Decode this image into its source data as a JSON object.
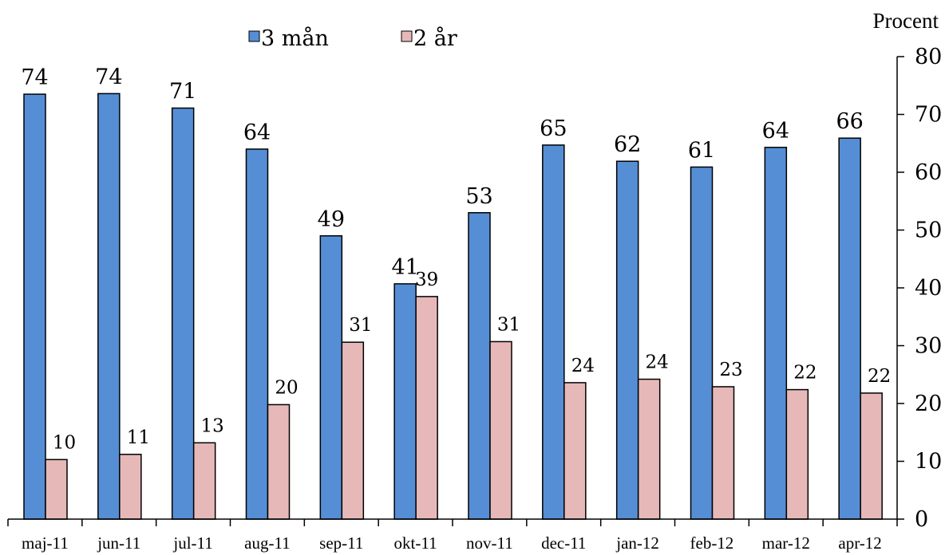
{
  "chart_data": {
    "type": "bar",
    "title": "",
    "unit_label": "Procent",
    "xlabel": "",
    "ylabel": "",
    "ylim": [
      0,
      80
    ],
    "yticks": [
      0,
      10,
      20,
      30,
      40,
      50,
      60,
      70,
      80
    ],
    "y_axis_side": "right",
    "grid": false,
    "legend_position": "top-left",
    "categories": [
      "maj-11",
      "jun-11",
      "jul-11",
      "aug-11",
      "sep-11",
      "okt-11",
      "nov-11",
      "dec-11",
      "jan-12",
      "feb-12",
      "mar-12",
      "apr-12"
    ],
    "series": [
      {
        "name": "3 mån",
        "color": "#558ed5",
        "values": [
          73.5,
          73.6,
          71.1,
          64.0,
          49.0,
          40.7,
          53.0,
          64.7,
          61.9,
          60.9,
          64.3,
          65.9
        ],
        "labels": [
          "74",
          "74",
          "71",
          "64",
          "49",
          "41",
          "53",
          "65",
          "62",
          "61",
          "64",
          "66"
        ]
      },
      {
        "name": "2 år",
        "color": "#e6b9b8",
        "values": [
          10.3,
          11.2,
          13.2,
          19.8,
          30.6,
          38.5,
          30.7,
          23.6,
          24.2,
          22.9,
          22.4,
          21.8
        ],
        "labels": [
          "10",
          "11",
          "13",
          "20",
          "31",
          "39",
          "31",
          "24",
          "24",
          "23",
          "22",
          "22"
        ]
      }
    ]
  }
}
